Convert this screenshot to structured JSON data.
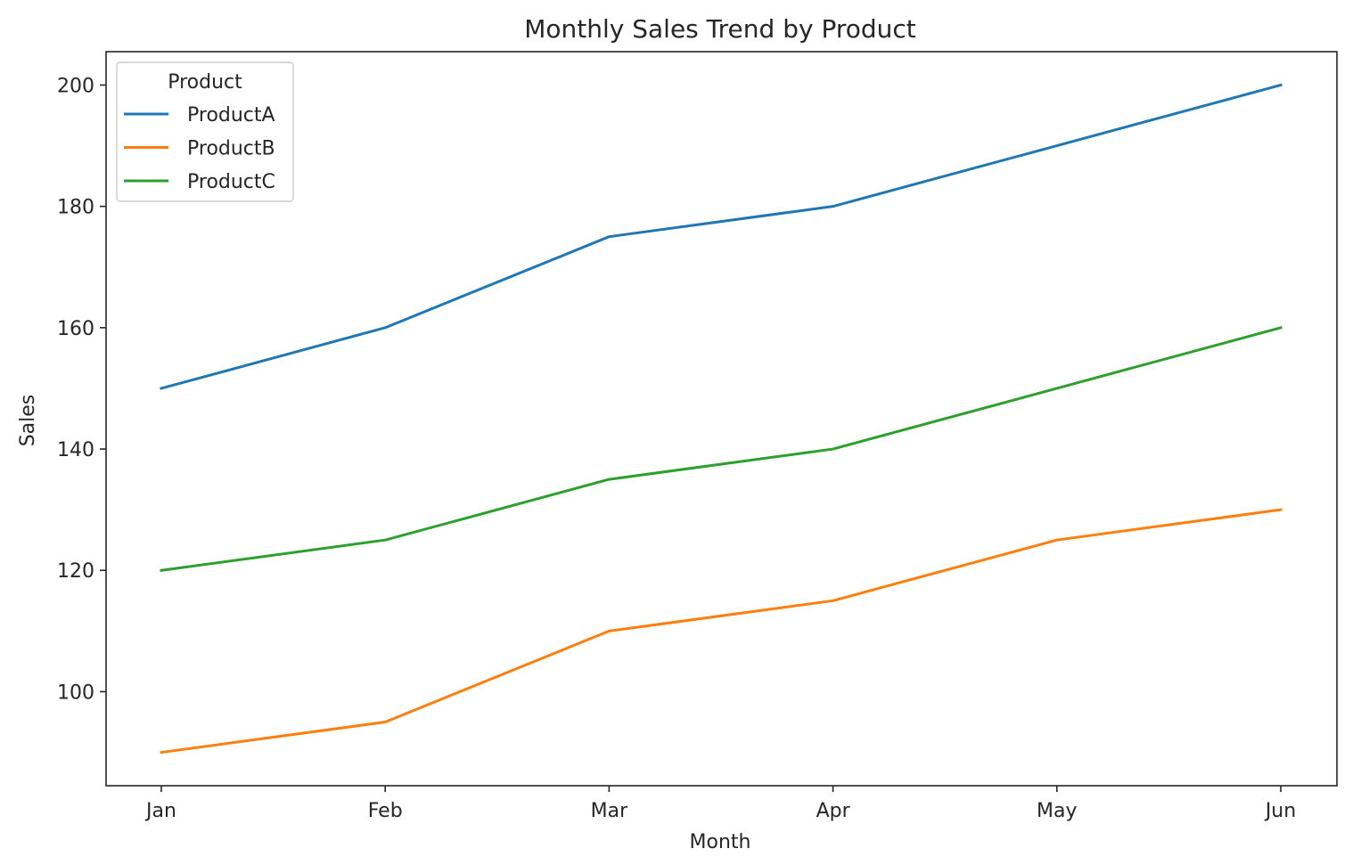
{
  "chart_data": {
    "type": "line",
    "title": "Monthly Sales Trend by Product",
    "xlabel": "Month",
    "ylabel": "Sales",
    "categories": [
      "Jan",
      "Feb",
      "Mar",
      "Apr",
      "May",
      "Jun"
    ],
    "ylim": [
      84.5,
      205.5
    ],
    "yticks": [
      100,
      120,
      140,
      160,
      180,
      200
    ],
    "grid": false,
    "legend": {
      "title": "Product",
      "placement": "top-left"
    },
    "series": [
      {
        "name": "ProductA",
        "color": "#1f77b4",
        "values": [
          150,
          160,
          175,
          180,
          190,
          200
        ]
      },
      {
        "name": "ProductB",
        "color": "#ff7f0e",
        "values": [
          90,
          95,
          110,
          115,
          125,
          130
        ]
      },
      {
        "name": "ProductC",
        "color": "#2ca02c",
        "values": [
          120,
          125,
          135,
          140,
          150,
          160
        ]
      }
    ]
  }
}
